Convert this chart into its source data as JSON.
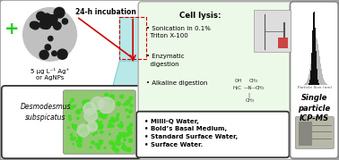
{
  "background_color": "#ffffff",
  "plus_color": "#22cc22",
  "red_color": "#cc0000",
  "cell_lysis_bg": "#edf9e8",
  "cell_lysis_border": "#aaaaaa",
  "dark_border": "#333333",
  "flask_fill": "#b8e8e8",
  "flask_edge": "#88cccc",
  "incubation_label": "24-h incubation",
  "ag_label": "5 μg L⁻¹ Ag⁺\nor AgNPs",
  "algae_italic": "Desmodesmus\nsubspicatus",
  "cell_lysis_title": "Cell lysis:",
  "lysis_line1": "• Sonication in 0.1%\n  Triton X-100",
  "lysis_line2": "• Enzymatic\n  digestion",
  "lysis_line3": "• Alkaline digestion",
  "water_items": "• Milli-Q Water,\n• Bold’s Basal Medium,\n• Standard Surface Water,\n• Surface Water.",
  "sp_label": "Single\nparticle\nICP-MS",
  "particle_size_label": "Particle Size (nm)"
}
